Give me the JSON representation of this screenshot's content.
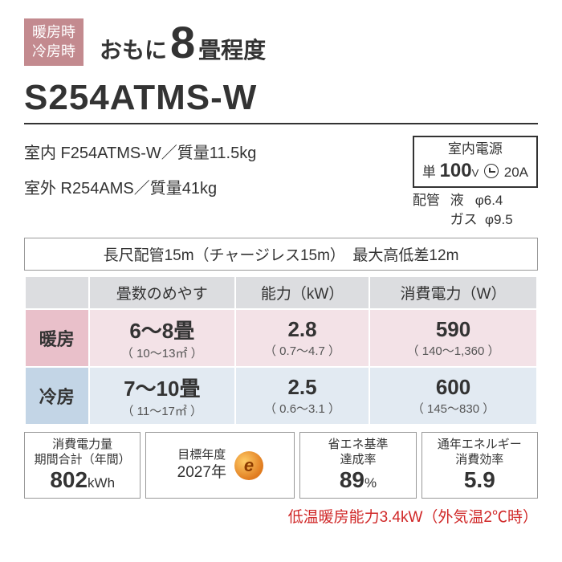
{
  "header": {
    "mode_line1": "暖房時",
    "mode_line2": "冷房時",
    "size_prefix": "おもに",
    "size_number": "8",
    "size_suffix": "畳程度"
  },
  "model": "S254ATMS-W",
  "units": {
    "indoor": "室内 F254ATMS-W／質量11.5kg",
    "outdoor": "室外 R254AMS／質量41kg"
  },
  "power": {
    "title": "室内電源",
    "phase": "単",
    "voltage": "100",
    "volt_unit": "V",
    "amperage": "20A"
  },
  "piping": {
    "label": "配管",
    "liquid_lbl": "液",
    "liquid_val": "φ6.4",
    "gas_lbl": "ガス",
    "gas_val": "φ9.5"
  },
  "long_pipe": "長尺配管15m（チャージレス15m）　最大高低差12m",
  "spec": {
    "headers": [
      "畳数のめやす",
      "能力（kW）",
      "消費電力（W）"
    ],
    "heat": {
      "label": "暖房",
      "tatami_main": "6～8畳",
      "tatami_sub": "（ 10～13㎡ ）",
      "capacity_main": "2.8",
      "capacity_sub": "（ 0.7～4.7 ）",
      "power_main": "590",
      "power_sub": "（ 140～1,360 ）"
    },
    "cool": {
      "label": "冷房",
      "tatami_main": "7～10畳",
      "tatami_sub": "（ 11～17㎡ ）",
      "capacity_main": "2.5",
      "capacity_sub": "（ 0.6～3.1 ）",
      "power_main": "600",
      "power_sub": "（ 145～830 ）"
    }
  },
  "bottom": {
    "annual": {
      "lbl1": "消費電力量",
      "lbl2": "期間合計（年間）",
      "val": "802",
      "unit": "kWh"
    },
    "target_year": {
      "lbl": "目標年度",
      "val": "2027年"
    },
    "efficiency": {
      "lbl1": "省エネ基準",
      "lbl2": "達成率",
      "val": "89",
      "unit": "%"
    },
    "apf": {
      "lbl1": "通年エネルギー",
      "lbl2": "消費効率",
      "val": "5.9"
    }
  },
  "footer": "低温暖房能力3.4kW（外気温2℃時）"
}
